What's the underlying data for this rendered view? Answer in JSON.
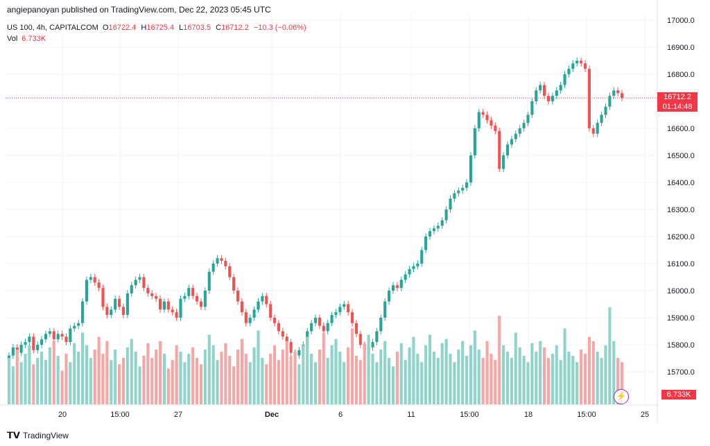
{
  "header": {
    "publisher": "angiepanoyan published on TradingView.com, Dec 22, 2023 05:45 UTC"
  },
  "instrument": {
    "symbol": "US 100, 4h, CAPITALCOM",
    "open_label": "O",
    "open": "16722.4",
    "high_label": "H",
    "high": "16725.4",
    "low_label": "L",
    "low": "16703.5",
    "close_label": "C",
    "close": "16712.2",
    "change": "−10.3 (−0.06%)"
  },
  "volume": {
    "label": "Vol",
    "value": "6.733K"
  },
  "price_tag": {
    "price": "16712.2",
    "countdown": "01:14:48"
  },
  "volume_tag": "6.733K",
  "footer": {
    "brand": "TradingView"
  },
  "colors": {
    "up": "#26a69a",
    "down": "#ef5350",
    "up_vol": "#8fd3cb",
    "down_vol": "#f5a7a5",
    "grid": "#f0f3fa"
  },
  "chart_data": {
    "type": "candlestick",
    "title": "US 100, 4h, CAPITALCOM",
    "ylim": [
      15650,
      17000
    ],
    "y_ticks": [
      "17000.0",
      "16900.0",
      "16800.0",
      "16700.0",
      "16600.0",
      "16500.0",
      "16400.0",
      "16300.0",
      "16200.0",
      "16100.0",
      "16000.0",
      "15900.0",
      "15800.0",
      "15700.0"
    ],
    "x_ticks": [
      "20",
      "15:00",
      "27",
      "Dec",
      "6",
      "11",
      "15:00",
      "18",
      "15:00",
      "25"
    ],
    "last_price": 16712.2,
    "closes": [
      15760,
      15790,
      15770,
      15800,
      15810,
      15830,
      15780,
      15800,
      15820,
      15840,
      15850,
      15820,
      15840,
      15830,
      15810,
      15860,
      15870,
      15880,
      15960,
      16040,
      16050,
      16030,
      16010,
      15940,
      15910,
      15930,
      15970,
      15940,
      15910,
      15990,
      16020,
      16040,
      16050,
      16010,
      15990,
      15980,
      15970,
      15930,
      15960,
      15930,
      15920,
      15900,
      15970,
      15980,
      16010,
      15980,
      15960,
      15940,
      16000,
      16070,
      16100,
      16120,
      16110,
      16090,
      16050,
      16000,
      15960,
      15920,
      15880,
      15900,
      15930,
      15960,
      15980,
      15950,
      15900,
      15880,
      15850,
      15830,
      15810,
      15770,
      15760,
      15780,
      15800,
      15850,
      15880,
      15900,
      15870,
      15850,
      15880,
      15910,
      15920,
      15940,
      15950,
      15920,
      15880,
      15840,
      15800,
      15780,
      15790,
      15810,
      15850,
      15900,
      15960,
      16000,
      16020,
      16010,
      16040,
      16060,
      16080,
      16090,
      16100,
      16150,
      16200,
      16220,
      16230,
      16240,
      16260,
      16300,
      16340,
      16360,
      16370,
      16380,
      16400,
      16500,
      16600,
      16660,
      16650,
      16630,
      16610,
      16590,
      16450,
      16500,
      16540,
      16560,
      16580,
      16600,
      16620,
      16650,
      16700,
      16740,
      16760,
      16720,
      16700,
      16720,
      16740,
      16760,
      16800,
      16820,
      16840,
      16850,
      16840,
      16820,
      16600,
      16580,
      16620,
      16650,
      16680,
      16720,
      16740,
      16730,
      16712
    ],
    "volumes": [
      2.2,
      1.8,
      2.6,
      2.0,
      2.4,
      2.8,
      1.9,
      2.2,
      2.5,
      2.1,
      2.7,
      3.0,
      2.3,
      1.6,
      2.4,
      2.0,
      2.9,
      2.5,
      3.4,
      2.8,
      2.2,
      2.6,
      3.2,
      2.4,
      3.0,
      2.1,
      2.6,
      1.9,
      2.2,
      2.7,
      3.1,
      2.5,
      1.8,
      2.3,
      2.9,
      2.2,
      2.6,
      3.0,
      2.4,
      1.7,
      2.1,
      2.8,
      2.5,
      2.0,
      2.4,
      2.7,
      2.2,
      1.9,
      2.6,
      3.3,
      2.8,
      2.1,
      2.5,
      2.9,
      2.3,
      1.8,
      2.6,
      3.1,
      2.4,
      2.0,
      2.7,
      3.5,
      2.2,
      1.9,
      2.4,
      2.8,
      2.1,
      2.6,
      3.0,
      2.3,
      2.5,
      1.9,
      2.8,
      3.2,
      2.4,
      2.0,
      2.6,
      3.4,
      2.2,
      2.8,
      3.1,
      2.5,
      2.0,
      2.7,
      3.6,
      2.3,
      2.1,
      2.9,
      3.3,
      2.4,
      2.0,
      2.6,
      3.0,
      2.2,
      1.8,
      2.5,
      2.9,
      2.1,
      2.7,
      3.2,
      2.4,
      2.0,
      2.8,
      3.3,
      2.5,
      2.2,
      2.9,
      3.1,
      2.4,
      2.0,
      2.6,
      3.0,
      2.3,
      2.8,
      3.5,
      2.6,
      2.2,
      3.0,
      2.4,
      2.1,
      4.2,
      2.8,
      2.5,
      2.2,
      3.4,
      2.7,
      2.3,
      2.0,
      2.9,
      2.5,
      3.0,
      2.7,
      2.2,
      2.4,
      2.8,
      2.1,
      3.6,
      2.5,
      2.3,
      2.0,
      2.6,
      2.4,
      3.2,
      3.0,
      2.5,
      2.2,
      2.8,
      4.6,
      3.0,
      2.2,
      2.0
    ]
  }
}
